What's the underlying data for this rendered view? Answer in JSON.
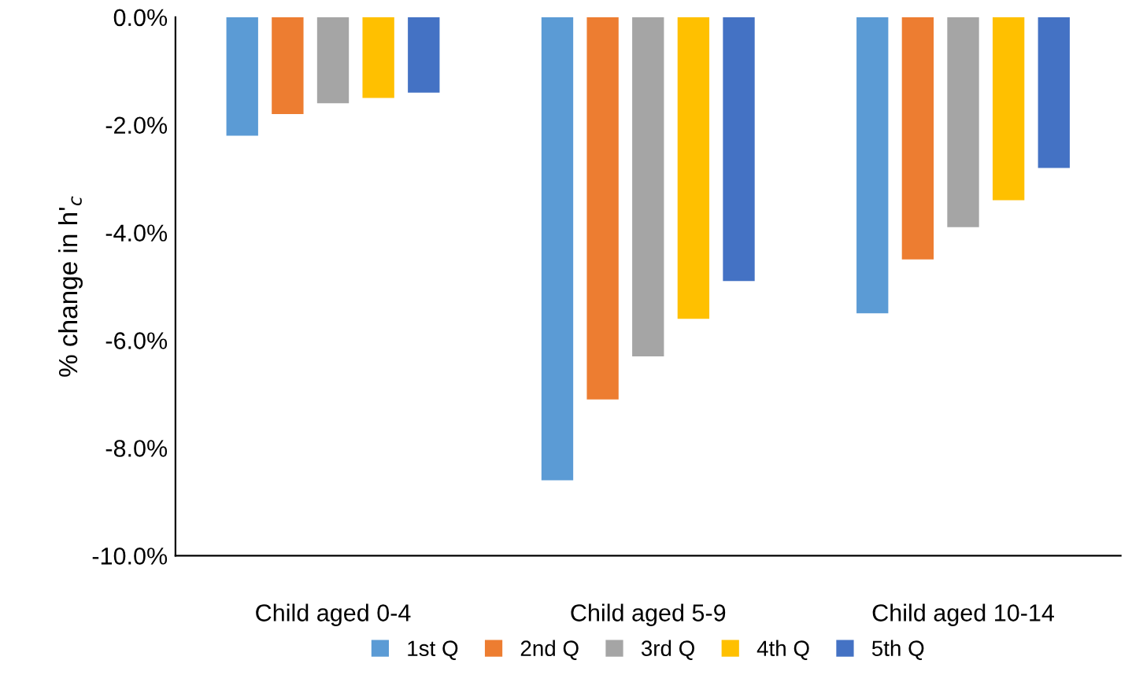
{
  "chart_data": {
    "type": "bar",
    "ylabel": "% change in h'$_{c}$",
    "categories": [
      "Child aged 0-4",
      "Child aged 5-9",
      "Child aged 10-14"
    ],
    "series": [
      {
        "name": "1st Q",
        "color": "#5b9bd5",
        "values": [
          -2.2,
          -8.6,
          -5.5
        ]
      },
      {
        "name": "2nd Q",
        "color": "#ed7d31",
        "values": [
          -1.8,
          -7.1,
          -4.5
        ]
      },
      {
        "name": "3rd Q",
        "color": "#a5a5a5",
        "values": [
          -1.6,
          -6.3,
          -3.9
        ]
      },
      {
        "name": "4th Q",
        "color": "#ffc000",
        "values": [
          -1.5,
          -5.6,
          -3.4
        ]
      },
      {
        "name": "5th Q",
        "color": "#4472c4",
        "values": [
          -1.4,
          -4.9,
          -2.8
        ]
      }
    ],
    "ylim": [
      -10,
      0
    ],
    "yticks": [
      {
        "value": -10,
        "label": "-10.0%"
      },
      {
        "value": -8,
        "label": "-8.0%"
      },
      {
        "value": -6,
        "label": "-6.0%"
      },
      {
        "value": -4,
        "label": "-4.0%"
      },
      {
        "value": -2,
        "label": "-2.0%"
      },
      {
        "value": 0,
        "label": "0.0%"
      }
    ],
    "grid": false,
    "legend": "bottom"
  }
}
